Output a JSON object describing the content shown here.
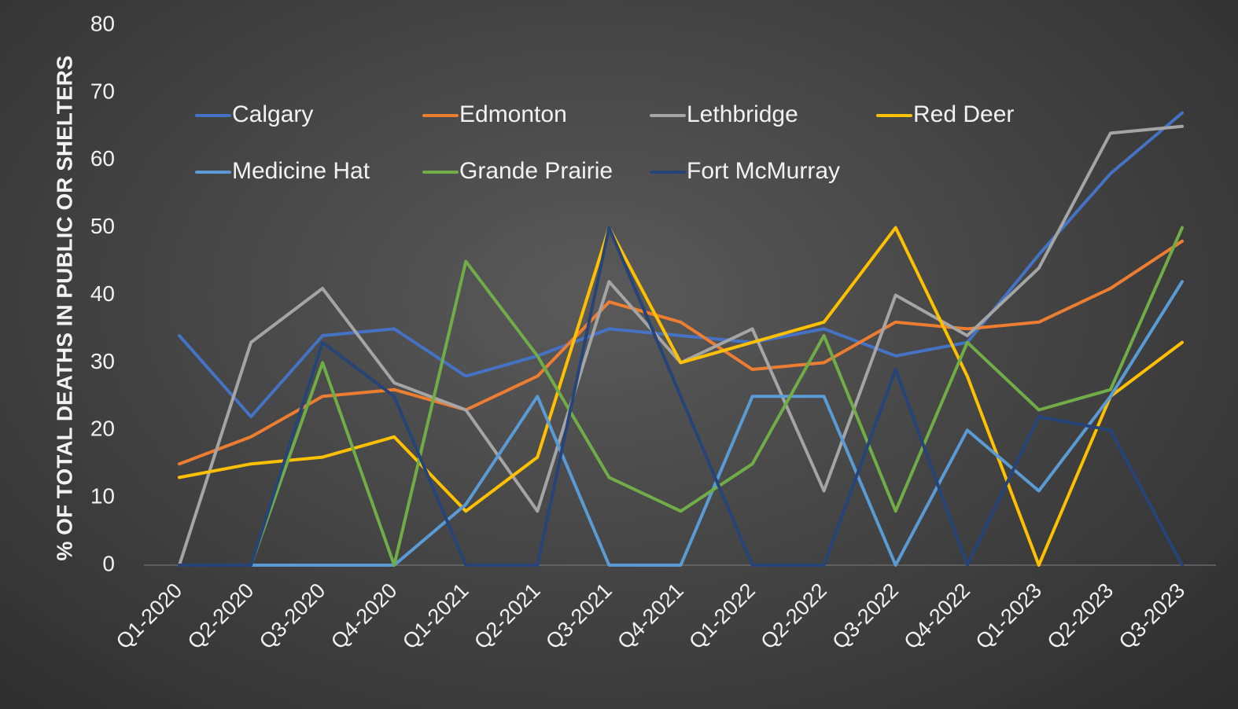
{
  "chart_data": {
    "type": "line",
    "ylabel": "% OF TOTAL DEATHS IN PUBLIC OR SHELTERS",
    "xlabel": "",
    "ylim": [
      0,
      80
    ],
    "yticks": [
      0,
      10,
      20,
      30,
      40,
      50,
      60,
      70,
      80
    ],
    "grid": false,
    "legend_position": "top-left (inside plot)",
    "categories": [
      "Q1-2020",
      "Q2-2020",
      "Q3-2020",
      "Q4-2020",
      "Q1-2021",
      "Q2-2021",
      "Q3-2021",
      "Q4-2021",
      "Q1-2022",
      "Q2-2022",
      "Q3-2022",
      "Q4-2022",
      "Q1-2023",
      "Q2-2023",
      "Q3-2023"
    ],
    "series": [
      {
        "name": "Calgary",
        "color": "#4472C4",
        "values": [
          34,
          22,
          34,
          35,
          28,
          31,
          35,
          34,
          33,
          35,
          31,
          33,
          46,
          58,
          67
        ]
      },
      {
        "name": "Edmonton",
        "color": "#ED7D31",
        "values": [
          15,
          19,
          25,
          26,
          23,
          28,
          39,
          36,
          29,
          30,
          36,
          35,
          36,
          41,
          48
        ]
      },
      {
        "name": "Lethbridge",
        "color": "#A5A5A5",
        "values": [
          0,
          33,
          41,
          27,
          23,
          8,
          42,
          30,
          35,
          11,
          40,
          34,
          44,
          64,
          65
        ]
      },
      {
        "name": "Red Deer",
        "color": "#FFC000",
        "values": [
          13,
          15,
          16,
          19,
          8,
          16,
          50,
          30,
          33,
          36,
          50,
          28,
          0,
          25,
          33
        ]
      },
      {
        "name": "Medicine Hat",
        "color": "#5B9BD5",
        "values": [
          0,
          0,
          0,
          0,
          9,
          25,
          0,
          0,
          25,
          25,
          0,
          20,
          11,
          25,
          42
        ]
      },
      {
        "name": "Grande Prairie",
        "color": "#70AD47",
        "values": [
          0,
          0,
          30,
          0,
          45,
          31,
          13,
          8,
          15,
          34,
          8,
          33,
          23,
          26,
          50
        ]
      },
      {
        "name": "Fort McMurray",
        "color": "#264478",
        "values": [
          0,
          0,
          33,
          25,
          0,
          0,
          50,
          25,
          0,
          0,
          29,
          0,
          22,
          20,
          0
        ]
      }
    ]
  }
}
